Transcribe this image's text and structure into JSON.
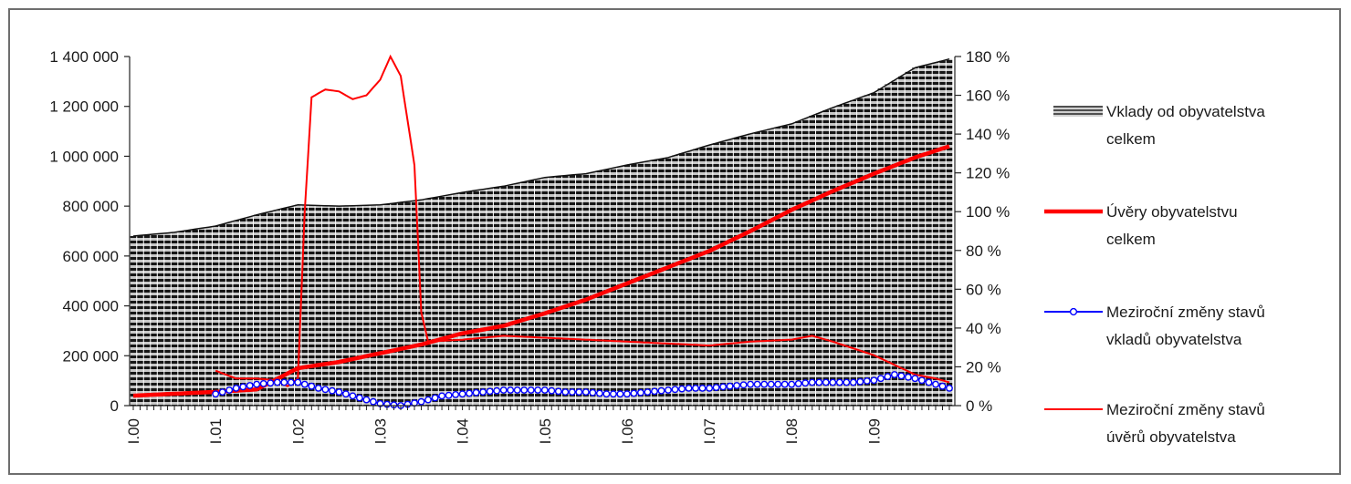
{
  "chart_data": {
    "type": "area",
    "x_categories": [
      "I.00",
      "I.01",
      "I.02",
      "I.03",
      "I.04",
      "I.05",
      "I.06",
      "I.07",
      "I.08",
      "I.09"
    ],
    "months_total": 120,
    "y_left": {
      "ylim": [
        0,
        1400000
      ],
      "ticks": [
        "0",
        "200 000",
        "400 000",
        "600 000",
        "800 000",
        "1 000 000",
        "1 200 000",
        "1 400 000"
      ]
    },
    "y_right": {
      "ylim": [
        0,
        180
      ],
      "ticks": [
        "0 %",
        "20 %",
        "40 %",
        "60 %",
        "80 %",
        "100 %",
        "120 %",
        "140 %",
        "160 %",
        "180 %"
      ]
    },
    "grid": false,
    "legend_position": "right",
    "series": [
      {
        "name": "Vklady od obyvatelstva celkem",
        "kind": "area",
        "axis": "left",
        "color": "#9a9a9a",
        "points": [
          [
            0,
            680000
          ],
          [
            6,
            695000
          ],
          [
            12,
            720000
          ],
          [
            18,
            765000
          ],
          [
            24,
            805000
          ],
          [
            30,
            800000
          ],
          [
            36,
            805000
          ],
          [
            42,
            825000
          ],
          [
            48,
            855000
          ],
          [
            54,
            880000
          ],
          [
            60,
            915000
          ],
          [
            66,
            930000
          ],
          [
            72,
            965000
          ],
          [
            78,
            995000
          ],
          [
            84,
            1045000
          ],
          [
            90,
            1090000
          ],
          [
            96,
            1130000
          ],
          [
            102,
            1195000
          ],
          [
            108,
            1255000
          ],
          [
            114,
            1355000
          ],
          [
            119,
            1390000
          ]
        ]
      },
      {
        "name": "Úvěry obyvatelstvu celkem",
        "kind": "line",
        "axis": "left",
        "color": "#ff0000",
        "points": [
          [
            0,
            40000
          ],
          [
            12,
            55000
          ],
          [
            18,
            65000
          ],
          [
            24,
            150000
          ],
          [
            30,
            175000
          ],
          [
            36,
            210000
          ],
          [
            42,
            245000
          ],
          [
            48,
            290000
          ],
          [
            54,
            320000
          ],
          [
            60,
            370000
          ],
          [
            66,
            425000
          ],
          [
            72,
            490000
          ],
          [
            78,
            555000
          ],
          [
            84,
            620000
          ],
          [
            90,
            700000
          ],
          [
            96,
            785000
          ],
          [
            102,
            860000
          ],
          [
            108,
            930000
          ],
          [
            114,
            995000
          ],
          [
            119,
            1040000
          ]
        ]
      },
      {
        "name": "Meziroční změny stavů vkladů obyvatelstva",
        "kind": "line-marker",
        "axis": "right",
        "color": "#0000ff",
        "points": [
          [
            12,
            6
          ],
          [
            15,
            9
          ],
          [
            18,
            11
          ],
          [
            21,
            12
          ],
          [
            24,
            12
          ],
          [
            27,
            9
          ],
          [
            30,
            7
          ],
          [
            33,
            4
          ],
          [
            36,
            1
          ],
          [
            39,
            0
          ],
          [
            42,
            2
          ],
          [
            45,
            5
          ],
          [
            48,
            6
          ],
          [
            51,
            7
          ],
          [
            54,
            8
          ],
          [
            57,
            8
          ],
          [
            60,
            8
          ],
          [
            63,
            7
          ],
          [
            66,
            7
          ],
          [
            69,
            6
          ],
          [
            72,
            6
          ],
          [
            75,
            7
          ],
          [
            78,
            8
          ],
          [
            81,
            9
          ],
          [
            84,
            9
          ],
          [
            87,
            10
          ],
          [
            90,
            11
          ],
          [
            93,
            11
          ],
          [
            96,
            11
          ],
          [
            99,
            12
          ],
          [
            102,
            12
          ],
          [
            105,
            12
          ],
          [
            108,
            13
          ],
          [
            111,
            16
          ],
          [
            114,
            14
          ],
          [
            117,
            11
          ],
          [
            119,
            9
          ]
        ]
      },
      {
        "name": "Meziroční změny stavů úvěrů obyvatelstva",
        "kind": "line",
        "axis": "right",
        "color": "#ff0000",
        "points": [
          [
            12,
            18
          ],
          [
            15,
            14
          ],
          [
            18,
            14
          ],
          [
            21,
            13
          ],
          [
            22.5,
            10
          ],
          [
            24,
            14
          ],
          [
            25,
            100
          ],
          [
            26,
            159
          ],
          [
            28,
            163
          ],
          [
            30,
            162
          ],
          [
            32,
            158
          ],
          [
            34,
            160
          ],
          [
            36,
            168
          ],
          [
            37.5,
            180
          ],
          [
            39,
            170
          ],
          [
            41,
            124
          ],
          [
            42,
            48
          ],
          [
            43,
            33
          ],
          [
            48,
            34
          ],
          [
            54,
            36
          ],
          [
            60,
            35
          ],
          [
            66,
            34
          ],
          [
            72,
            33
          ],
          [
            78,
            32
          ],
          [
            84,
            31
          ],
          [
            90,
            33
          ],
          [
            96,
            34
          ],
          [
            99,
            36
          ],
          [
            102,
            33
          ],
          [
            108,
            26
          ],
          [
            114,
            16
          ],
          [
            117,
            14
          ],
          [
            119,
            12
          ]
        ]
      }
    ]
  }
}
